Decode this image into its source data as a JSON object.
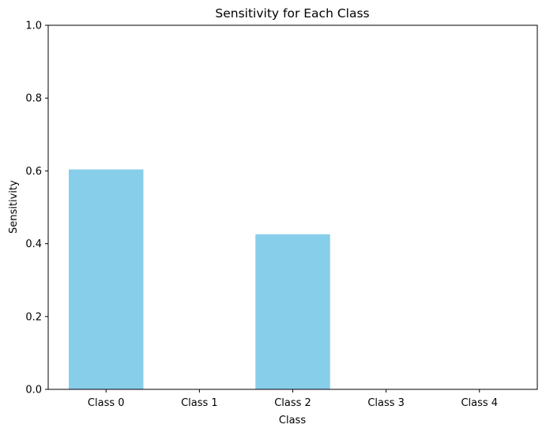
{
  "chart_data": {
    "type": "bar",
    "title": "Sensitivity for Each Class",
    "xlabel": "Class",
    "ylabel": "Sensitivity",
    "categories": [
      "Class 0",
      "Class 1",
      "Class 2",
      "Class 3",
      "Class 4"
    ],
    "values": [
      0.604,
      0.0,
      0.426,
      0.0,
      0.0
    ],
    "ylim": [
      0,
      1
    ],
    "yticks": [
      0.0,
      0.2,
      0.4,
      0.6,
      0.8,
      1.0
    ],
    "ytick_labels": [
      "0.0",
      "0.2",
      "0.4",
      "0.6",
      "0.8",
      "1.0"
    ],
    "bar_color": "#87ceeb",
    "grid": false,
    "legend": "none"
  }
}
